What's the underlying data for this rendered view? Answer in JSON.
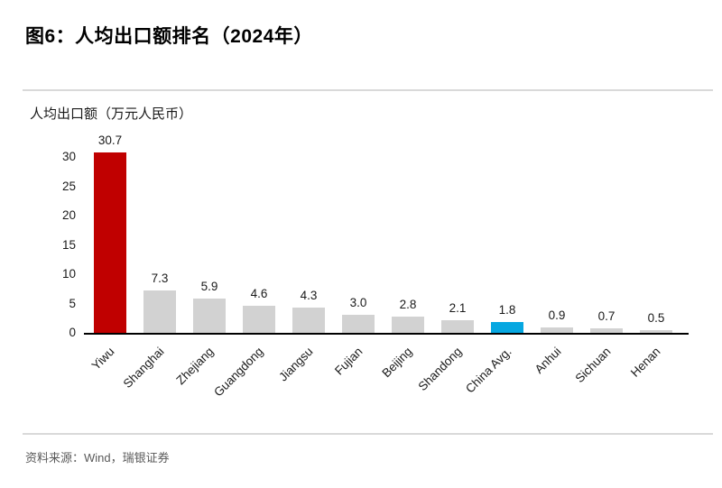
{
  "title": "图6：人均出口额排名（2024年）",
  "source": "资料来源：Wind，瑞银证券",
  "colors": {
    "highlight_red": "#c00000",
    "default_gray": "#d2d2d2",
    "china_avg_blue": "#06a7e1",
    "divider_gray": "#d9d9d9",
    "axis_black": "#000000",
    "source_text_gray": "#595959"
  },
  "chart_data": {
    "type": "bar",
    "title": "图6：人均出口额排名（2024年）",
    "ylabel": "人均出口额（万元人民币）",
    "xlabel": "",
    "categories": [
      "Yiwu",
      "Shanghai",
      "Zhejiang",
      "Guangdong",
      "Jiangsu",
      "Fujian",
      "Beijing",
      "Shandong",
      "China Avg.",
      "Anhui",
      "Sichuan",
      "Henan"
    ],
    "values": [
      30.7,
      7.3,
      5.9,
      4.6,
      4.3,
      3.0,
      2.8,
      2.1,
      1.8,
      0.9,
      0.7,
      0.5
    ],
    "value_labels": [
      "30.7",
      "7.3",
      "5.9",
      "4.6",
      "4.3",
      "3.0",
      "2.8",
      "2.1",
      "1.8",
      "0.9",
      "0.7",
      "0.5"
    ],
    "bar_colors": [
      "#c00000",
      "#d2d2d2",
      "#d2d2d2",
      "#d2d2d2",
      "#d2d2d2",
      "#d2d2d2",
      "#d2d2d2",
      "#d2d2d2",
      "#06a7e1",
      "#d2d2d2",
      "#d2d2d2",
      "#d2d2d2"
    ],
    "yticks": [
      0,
      5,
      10,
      15,
      20,
      25,
      30
    ],
    "ylim": [
      0,
      30.7
    ],
    "grid": false,
    "legend": "none",
    "category_label_rotation_deg": -45
  }
}
